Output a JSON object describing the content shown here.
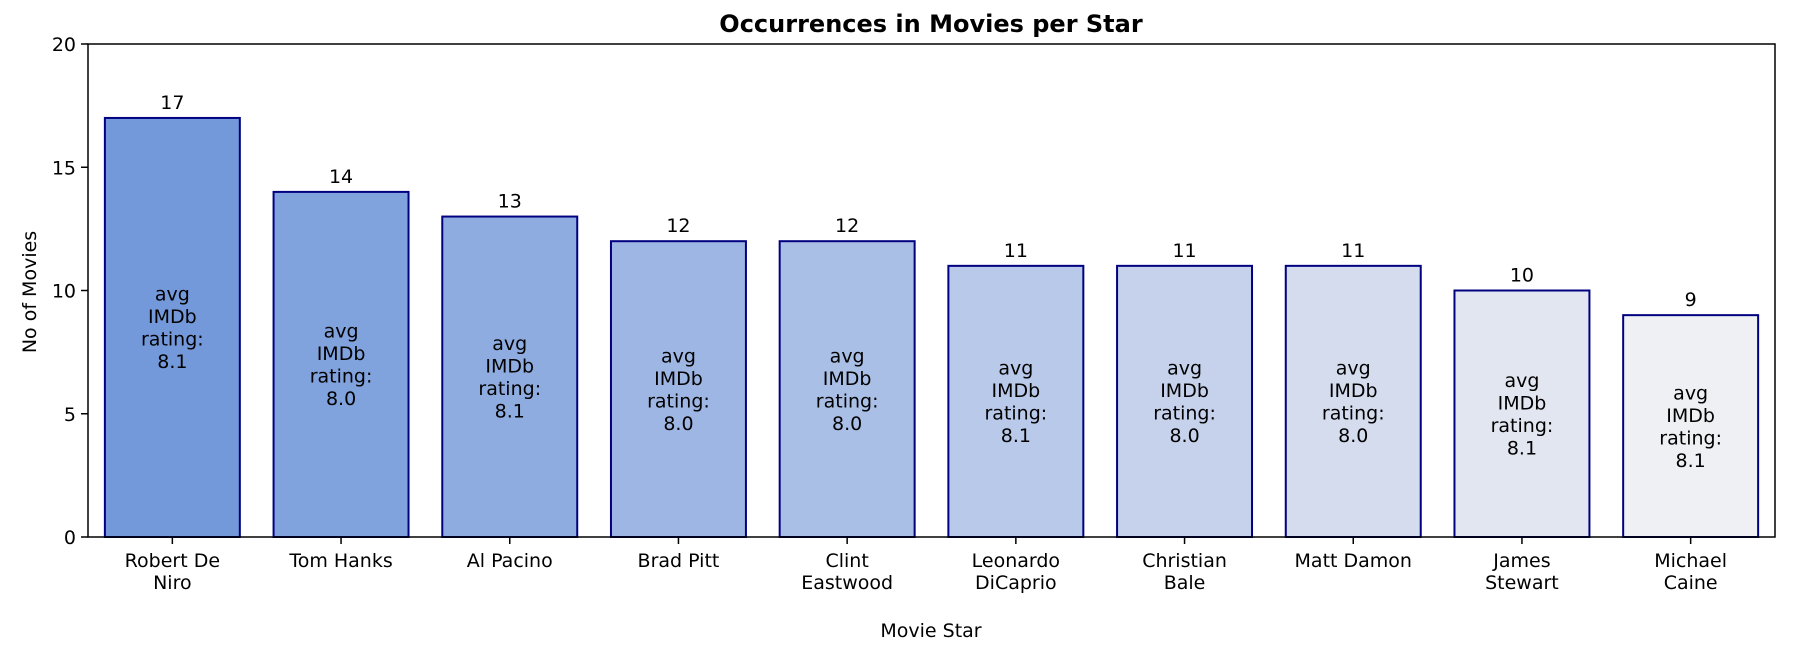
{
  "chart_data": {
    "type": "bar",
    "title": "Occurrences in Movies per Star",
    "xlabel": "Movie Star",
    "ylabel": "No of Movies",
    "ylim": [
      0,
      20
    ],
    "yticks": [
      0,
      5,
      10,
      15,
      20
    ],
    "categories": [
      "Robert De Niro",
      "Tom Hanks",
      "Al Pacino",
      "Brad Pitt",
      "Clint Eastwood",
      "Leonardo DiCaprio",
      "Christian Bale",
      "Matt Damon",
      "James Stewart",
      "Michael Caine"
    ],
    "category_label_lines": [
      [
        "Robert De",
        "Niro"
      ],
      [
        "Tom Hanks"
      ],
      [
        "Al Pacino"
      ],
      [
        "Brad Pitt"
      ],
      [
        "Clint",
        "Eastwood"
      ],
      [
        "Leonardo",
        "DiCaprio"
      ],
      [
        "Christian",
        "Bale"
      ],
      [
        "Matt Damon"
      ],
      [
        "James",
        "Stewart"
      ],
      [
        "Michael",
        "Caine"
      ]
    ],
    "values": [
      17,
      14,
      13,
      12,
      12,
      11,
      11,
      11,
      10,
      9
    ],
    "avg_imdb_rating": [
      "8.1",
      "8.0",
      "8.1",
      "8.0",
      "8.0",
      "8.1",
      "8.0",
      "8.0",
      "8.1",
      "8.1"
    ],
    "inner_label_lines": [
      "avg",
      "IMDb",
      "rating:"
    ],
    "bar_colors": [
      "#7399DB",
      "#80A2DD",
      "#8EACE0",
      "#9DB6E3",
      "#AABFE6",
      "#B8C9E9",
      "#C6D2EC",
      "#D4DCEE",
      "#E2E6F0",
      "#EFF0F3"
    ],
    "bar_edge_color": "#000080",
    "grid": false,
    "legend": "none"
  }
}
